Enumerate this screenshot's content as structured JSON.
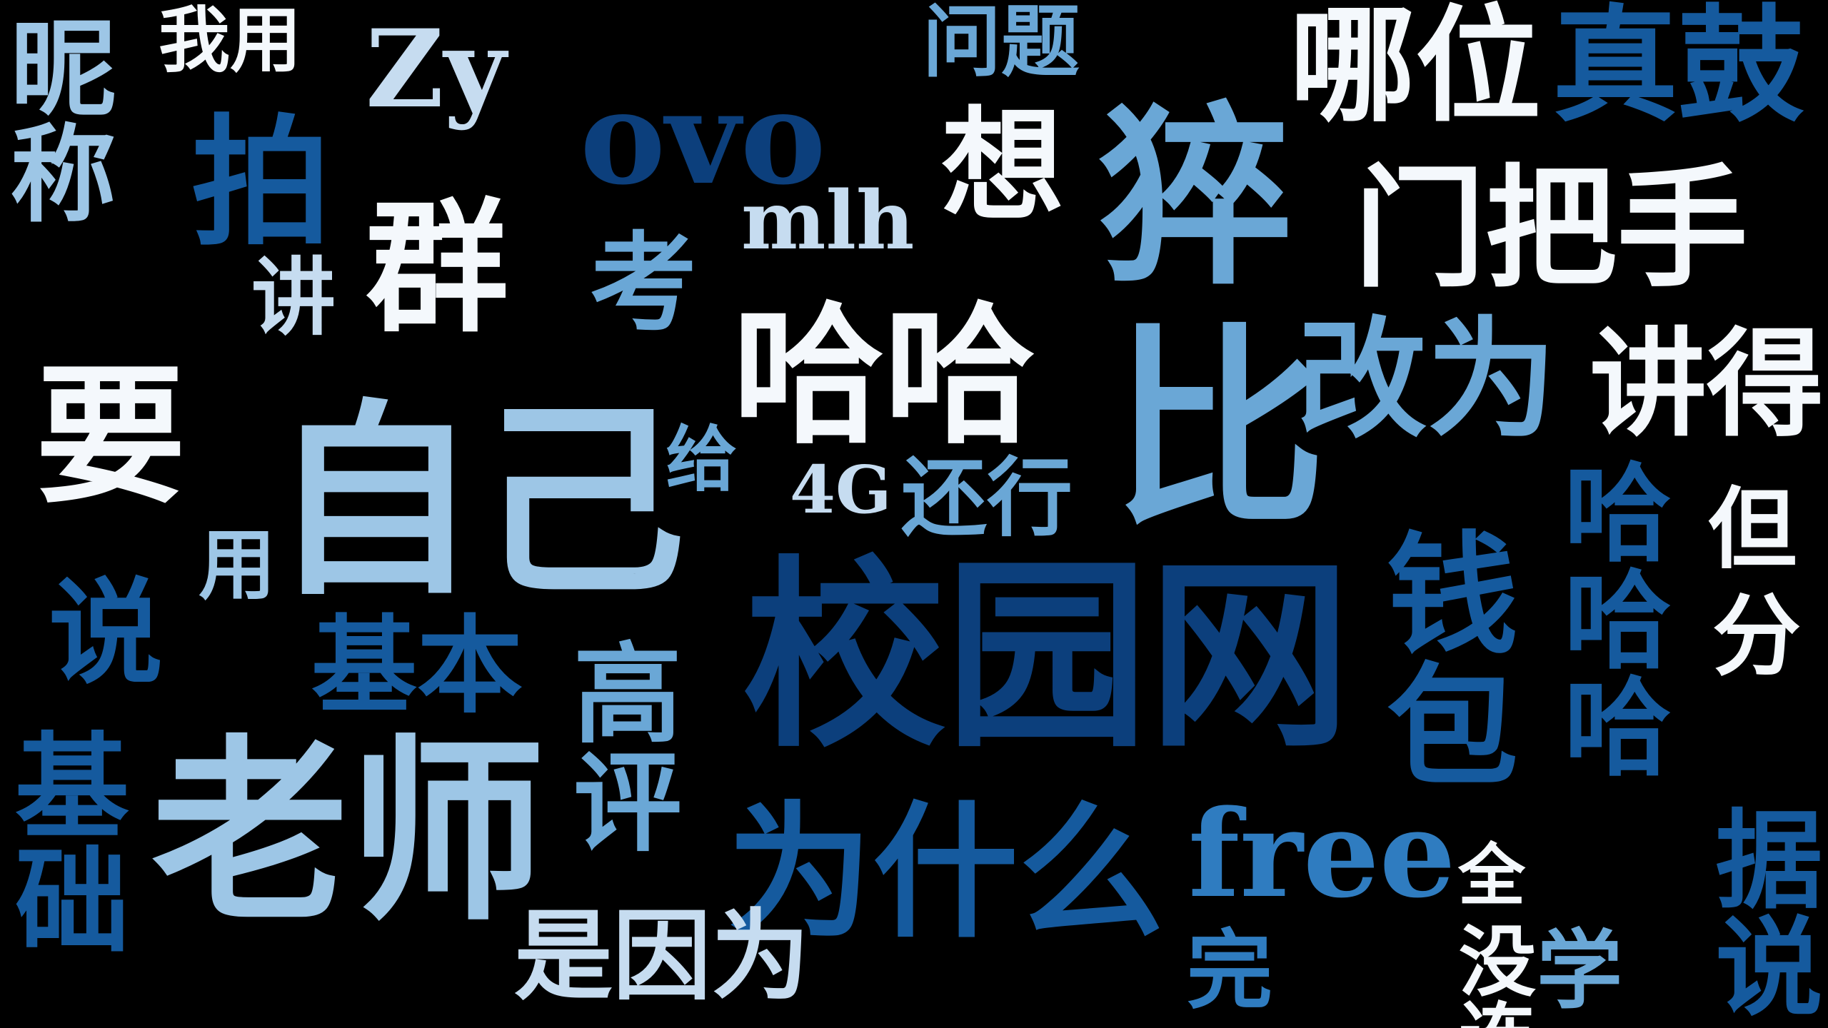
{
  "palette": {
    "white": "#f4f8fc",
    "very_light_blue": "#c6dcf0",
    "light_blue": "#9dc6e6",
    "mid_blue": "#6aa7d6",
    "blue": "#2f7cc0",
    "deep_blue": "#155a9e",
    "navy": "#0c3f7c",
    "background": "#000000"
  },
  "words": [
    "昵称",
    "我用",
    "Zy",
    "问题",
    "哪位",
    "真鼓",
    "拍",
    "ovo",
    "想",
    "猝",
    "门把手",
    "群",
    "讲",
    "考",
    "mlh",
    "哈哈",
    "比",
    "改为",
    "讲得",
    "要",
    "自己",
    "给",
    "4G",
    "还行",
    "哈哈哈",
    "但",
    "用",
    "说",
    "基本",
    "校园网",
    "钱包",
    "分",
    "基础",
    "老师",
    "高评",
    "为什么",
    "free",
    "全",
    "据说",
    "是因为",
    "完",
    "没连",
    "学"
  ]
}
